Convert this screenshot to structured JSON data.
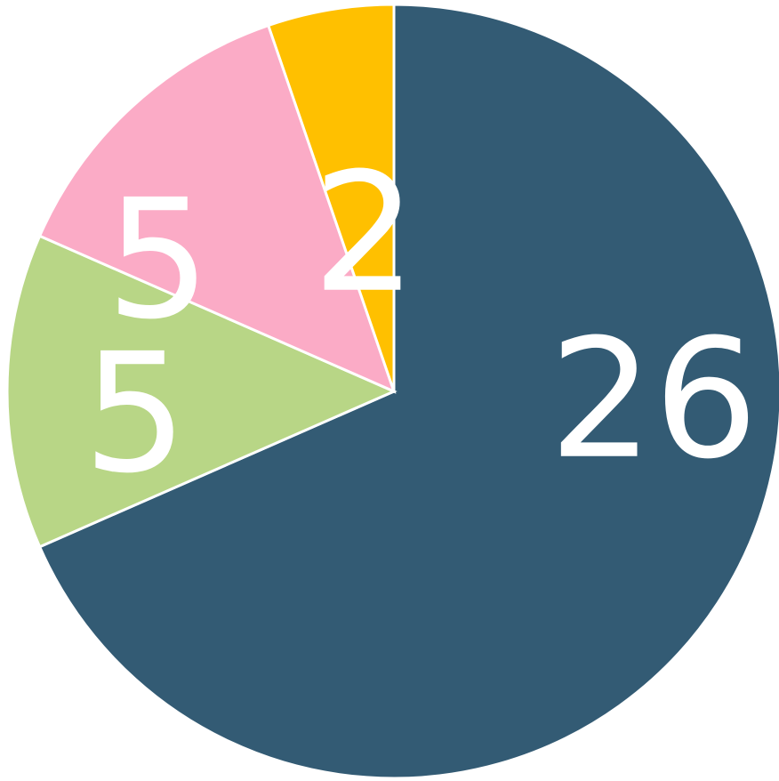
{
  "chart_data": {
    "type": "pie",
    "values": [
      26,
      5,
      5,
      2
    ],
    "colors": [
      "#335b74",
      "#b8d686",
      "#fbabc6",
      "#ffc000"
    ]
  }
}
